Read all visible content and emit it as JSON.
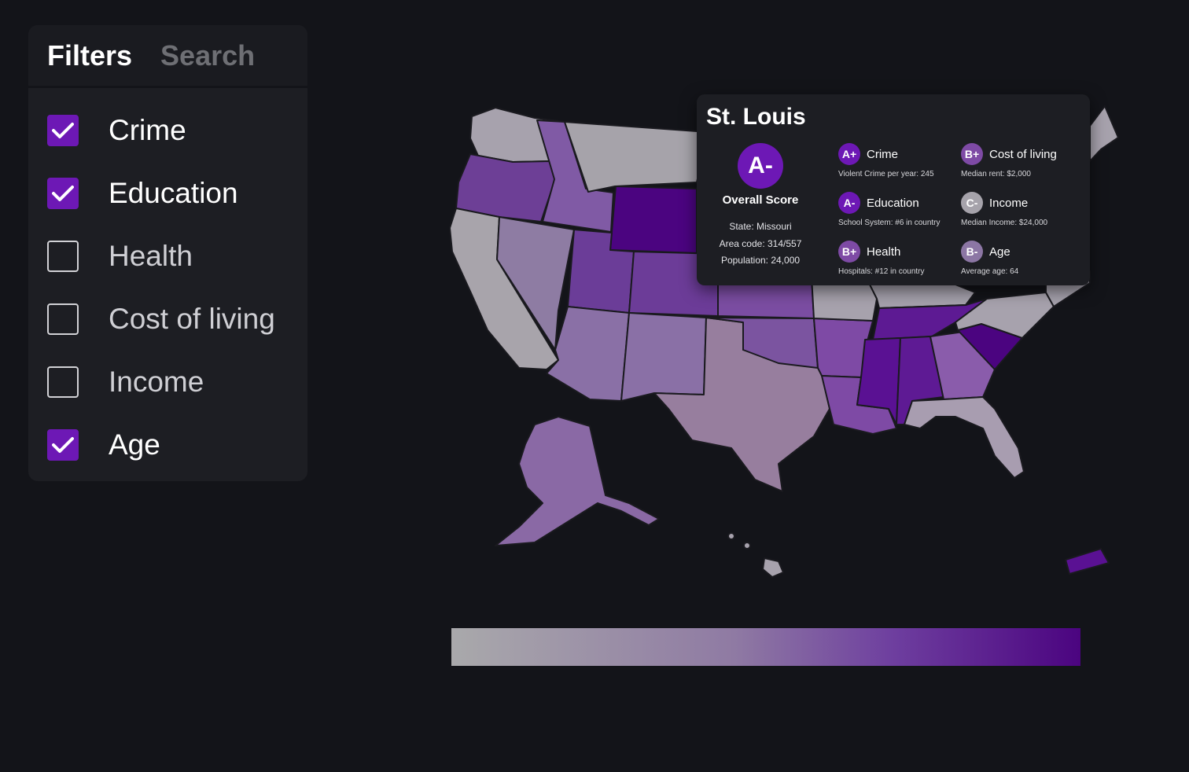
{
  "panel": {
    "tabs": [
      {
        "label": "Filters",
        "active": true
      },
      {
        "label": "Search",
        "active": false
      }
    ],
    "filters": [
      {
        "label": "Crime",
        "checked": true
      },
      {
        "label": "Education",
        "checked": true
      },
      {
        "label": "Health",
        "checked": false
      },
      {
        "label": "Cost of living",
        "checked": false
      },
      {
        "label": "Income",
        "checked": false
      },
      {
        "label": "Age",
        "checked": true
      }
    ]
  },
  "colors": {
    "accent": "#6d18b5",
    "legend_low": "#a9a9ab",
    "legend_high": "#4b0480",
    "background": "#131419",
    "panel": "#1d1e23"
  },
  "tooltip": {
    "city": "St. Louis",
    "overall_grade": "A-",
    "overall_label": "Overall Score",
    "state": "State: Missouri",
    "area_code": "Area code: 314/557",
    "population": "Population: 24,000",
    "metrics": [
      {
        "grade": "A+",
        "name": "Crime",
        "detail": "Violent Crime per year: 245",
        "color": "#6d18b5"
      },
      {
        "grade": "B+",
        "name": "Cost of living",
        "detail": "Median rent: $2,000",
        "color": "#7e4aa5"
      },
      {
        "grade": "A-",
        "name": "Education",
        "detail": "School System: #6 in country",
        "color": "#6d18b5"
      },
      {
        "grade": "C-",
        "name": "Income",
        "detail": "Median Income: $24,000",
        "color": "#a6a3ab"
      },
      {
        "grade": "B+",
        "name": "Health",
        "detail": "Hospitals: #12 in country",
        "color": "#7e4aa5"
      },
      {
        "grade": "B-",
        "name": "Age",
        "detail": "Average age: 64",
        "color": "#8c76a4"
      }
    ]
  },
  "map": {
    "region": "United States",
    "legend": {
      "type": "continuous gradient",
      "low_color": "#a9a9ab",
      "high_color": "#4b0480"
    }
  }
}
